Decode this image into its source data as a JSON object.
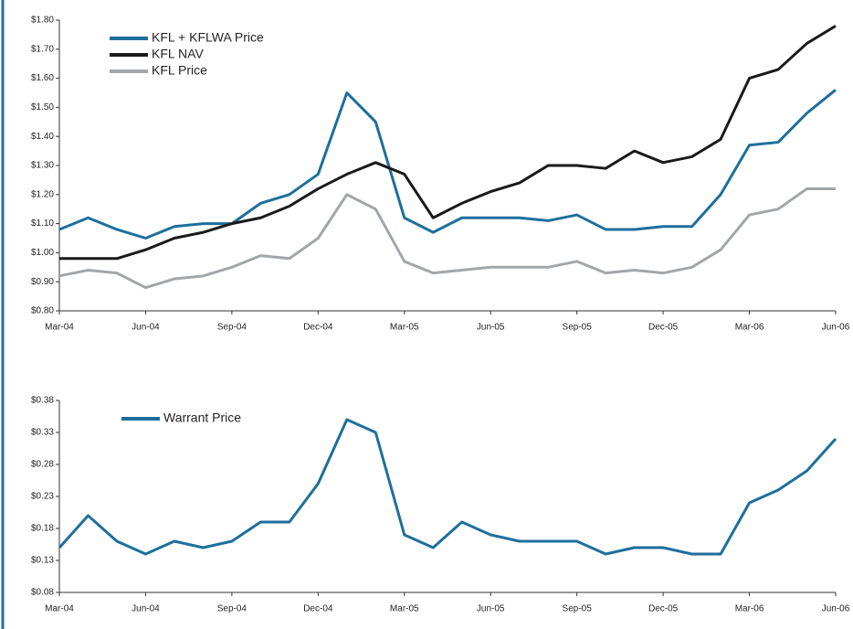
{
  "chart_data": [
    {
      "type": "line",
      "categories": [
        "Mar-04",
        null,
        null,
        "Jun-04",
        null,
        null,
        "Sep-04",
        null,
        null,
        "Dec-04",
        null,
        null,
        "Mar-05",
        null,
        null,
        "Jun-05",
        null,
        null,
        "Sep-05",
        null,
        null,
        "Dec-05",
        null,
        null,
        "Mar-06",
        null,
        null,
        "Jun-06"
      ],
      "series": [
        {
          "name": "KFL + KFLWA Price",
          "color": "#1d6f9c",
          "values": [
            1.08,
            1.12,
            1.08,
            1.05,
            1.09,
            1.1,
            1.1,
            1.17,
            1.2,
            1.27,
            1.55,
            1.45,
            1.12,
            1.07,
            1.12,
            1.12,
            1.12,
            1.11,
            1.13,
            1.08,
            1.08,
            1.09,
            1.09,
            1.2,
            1.37,
            1.38,
            1.48,
            1.56
          ]
        },
        {
          "name": "KFL NAV",
          "color": "#1a1a1a",
          "values": [
            0.98,
            0.98,
            0.98,
            1.01,
            1.05,
            1.07,
            1.1,
            1.12,
            1.16,
            1.22,
            1.27,
            1.31,
            1.27,
            1.12,
            1.17,
            1.21,
            1.24,
            1.3,
            1.3,
            1.29,
            1.35,
            1.31,
            1.33,
            1.39,
            1.6,
            1.63,
            1.72,
            1.78
          ]
        },
        {
          "name": "KFL Price",
          "color": "#a3a6a8",
          "values": [
            0.92,
            0.94,
            0.93,
            0.88,
            0.91,
            0.92,
            0.95,
            0.99,
            0.98,
            1.05,
            1.2,
            1.15,
            0.97,
            0.93,
            0.94,
            0.95,
            0.95,
            0.95,
            0.97,
            0.93,
            0.94,
            0.93,
            0.95,
            1.01,
            1.13,
            1.15,
            1.22,
            1.22
          ]
        }
      ],
      "ylim": [
        0.8,
        1.8
      ],
      "yticks": [
        {
          "value": 0.8,
          "label": "$0.80"
        },
        {
          "value": 0.9,
          "label": "$0.90"
        },
        {
          "value": 1.0,
          "label": "$1.00"
        },
        {
          "value": 1.1,
          "label": "$1.10"
        },
        {
          "value": 1.2,
          "label": "$1.20"
        },
        {
          "value": 1.3,
          "label": "$1.30"
        },
        {
          "value": 1.4,
          "label": "$1.40"
        },
        {
          "value": 1.5,
          "label": "$1.50"
        },
        {
          "value": 1.6,
          "label": "$1.60"
        },
        {
          "value": 1.7,
          "label": "$1.70"
        },
        {
          "value": 1.8,
          "label": "$1.80"
        }
      ],
      "grid": false,
      "legend": "upper left"
    },
    {
      "type": "line",
      "categories": [
        "Mar-04",
        null,
        null,
        "Jun-04",
        null,
        null,
        "Sep-04",
        null,
        null,
        "Dec-04",
        null,
        null,
        "Mar-05",
        null,
        null,
        "Jun-05",
        null,
        null,
        "Sep-05",
        null,
        null,
        "Dec-05",
        null,
        null,
        "Mar-06",
        null,
        null,
        "Jun-06"
      ],
      "series": [
        {
          "name": "Warrant Price",
          "color": "#1d6f9c",
          "values": [
            0.15,
            0.2,
            0.16,
            0.14,
            0.16,
            0.15,
            0.16,
            0.19,
            0.19,
            0.25,
            0.35,
            0.33,
            0.17,
            0.15,
            0.19,
            0.17,
            0.16,
            0.16,
            0.16,
            0.14,
            0.15,
            0.15,
            0.14,
            0.14,
            0.22,
            0.24,
            0.27,
            0.32
          ]
        }
      ],
      "ylim": [
        0.08,
        0.38
      ],
      "yticks": [
        {
          "value": 0.08,
          "label": "$0.08"
        },
        {
          "value": 0.13,
          "label": "$0.13"
        },
        {
          "value": 0.18,
          "label": "$0.18"
        },
        {
          "value": 0.23,
          "label": "$0.23"
        },
        {
          "value": 0.28,
          "label": "$0.28"
        },
        {
          "value": 0.33,
          "label": "$0.33"
        },
        {
          "value": 0.38,
          "label": "$0.38"
        }
      ],
      "grid": false,
      "legend": "upper left"
    }
  ]
}
